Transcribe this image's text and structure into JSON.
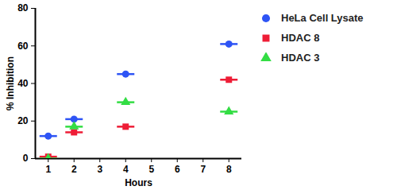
{
  "chart_data": {
    "type": "scatter",
    "x_label": "Hours",
    "y_label": "% Inhibition",
    "x": [
      1,
      2,
      4,
      8
    ],
    "xlim": [
      0.5,
      8.5
    ],
    "xticks": [
      1,
      2,
      3,
      4,
      5,
      6,
      7,
      8
    ],
    "ylim": [
      0,
      80
    ],
    "yticks": [
      0,
      20,
      40,
      60,
      80
    ],
    "legend": "right",
    "series": [
      {
        "name": "HeLa Cell Lysate",
        "color": "#2e54f5",
        "marker": "circle",
        "values": [
          12,
          21,
          45,
          61
        ]
      },
      {
        "name": "HDAC 8",
        "color": "#ee1d36",
        "marker": "square",
        "values": [
          1,
          14,
          17,
          42
        ]
      },
      {
        "name": "HDAC 3",
        "color": "#33dd44",
        "marker": "triangle",
        "values": [
          0,
          17,
          30,
          25
        ]
      }
    ]
  }
}
